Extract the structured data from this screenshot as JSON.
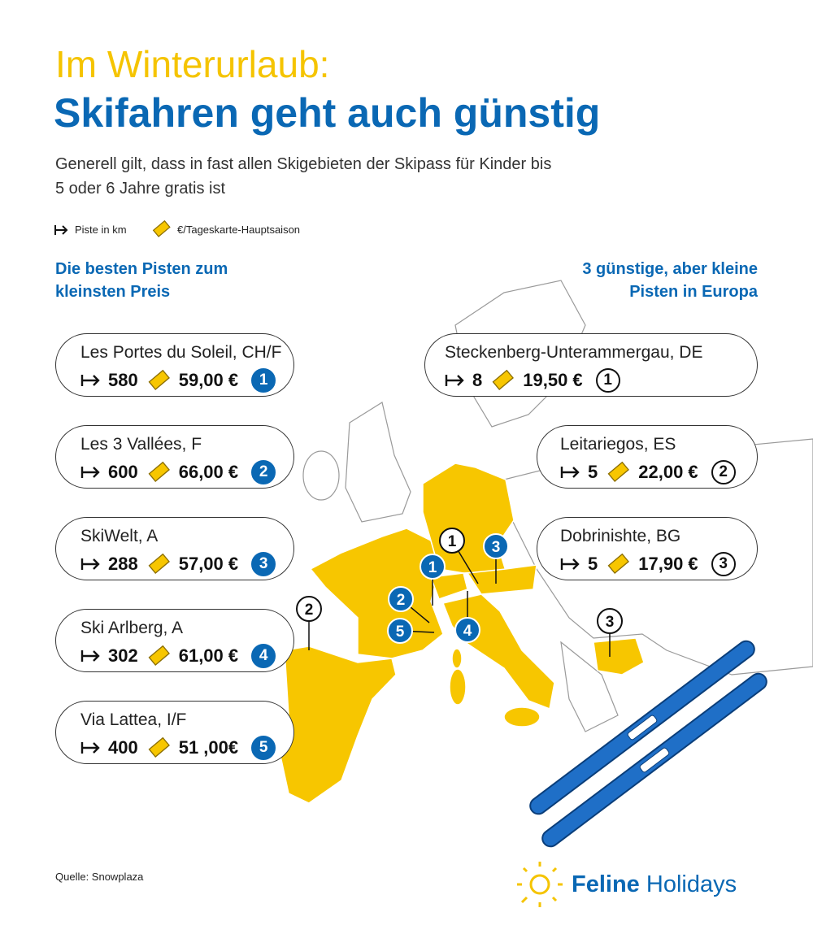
{
  "header": {
    "title_line1": "Im Winterurlaub:",
    "title_line2": "Skifahren geht auch günstig",
    "subtitle_line1": "Generell gilt, dass in fast allen Skigebieten der Skipass für Kinder bis",
    "subtitle_line2": "5 oder 6 Jahre gratis ist"
  },
  "legend": {
    "piste": "Piste in km",
    "price": "€/Tageskarte-Hauptsaison"
  },
  "left": {
    "heading_line1": "Die besten Pisten zum",
    "heading_line2": "kleinsten Preis",
    "cards": [
      {
        "name": "Les Portes du Soleil, CH/F",
        "km": "580",
        "price": "59,00 €",
        "rank": "1"
      },
      {
        "name": "Les 3 Vallées, F",
        "km": "600",
        "price": "66,00 €",
        "rank": "2"
      },
      {
        "name": "SkiWelt, A",
        "km": "288",
        "price": "57,00 €",
        "rank": "3"
      },
      {
        "name": "Ski Arlberg, A",
        "km": "302",
        "price": "61,00 €",
        "rank": "4"
      },
      {
        "name": "Via Lattea, I/F",
        "km": "400",
        "price": "51 ,00€",
        "rank": "5"
      }
    ]
  },
  "right": {
    "heading_line1": "3 günstige, aber kleine",
    "heading_line2": "Pisten in Europa",
    "cards": [
      {
        "name": "Steckenberg-Unterammergau, DE",
        "km": "8",
        "price": "19,50 €",
        "rank": "1"
      },
      {
        "name": "Leitariegos, ES",
        "km": "5",
        "price": "22,00 €",
        "rank": "2"
      },
      {
        "name": "Dobrinishte, BG",
        "km": "5",
        "price": "17,90 €",
        "rank": "3"
      }
    ]
  },
  "map": {
    "best_markers": [
      "1",
      "2",
      "3",
      "4",
      "5"
    ],
    "cheap_markers": [
      "1",
      "2",
      "3"
    ]
  },
  "source": "Quelle: Snowplaza",
  "logo": {
    "brand": "Feline",
    "suffix": "Holidays"
  }
}
